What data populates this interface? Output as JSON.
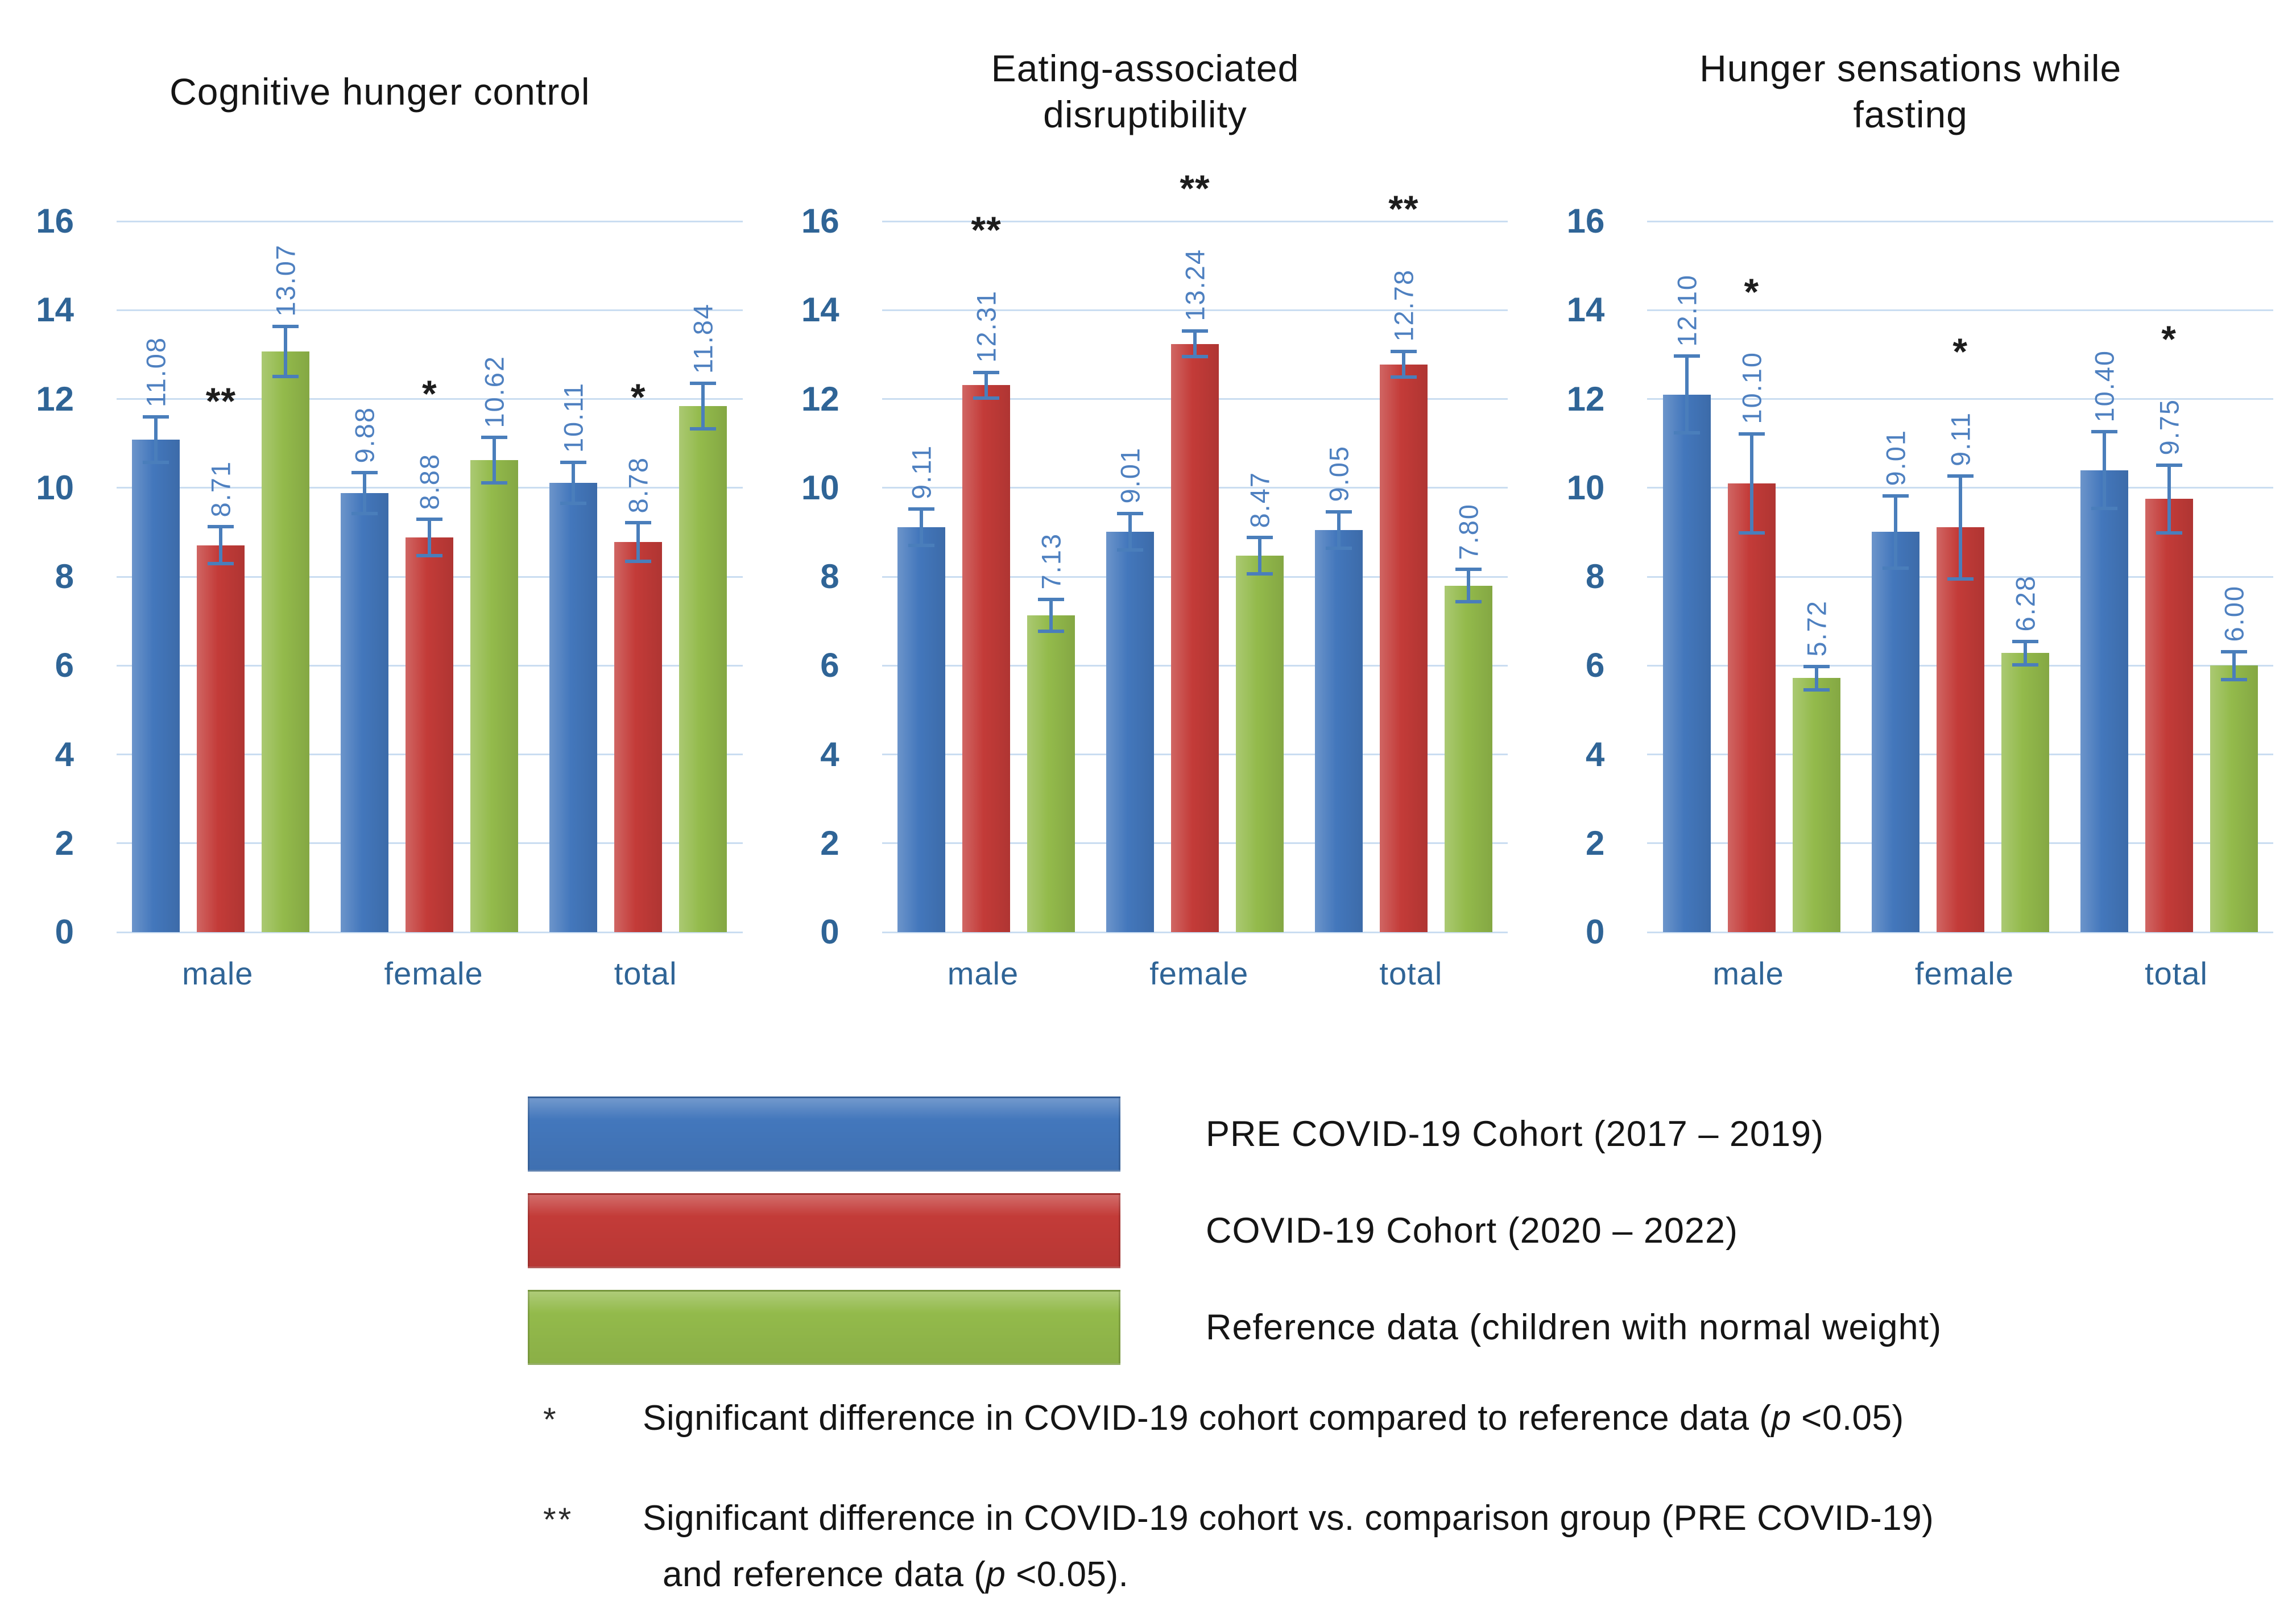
{
  "y_axis": {
    "min": 0,
    "max": 16,
    "step": 2
  },
  "colors": {
    "bar_blue": "#4377BC",
    "bar_red": "#C33B38",
    "bar_green": "#93BA4B",
    "error_bar": "#4A7EBB",
    "gridline": "#CADDF1",
    "axis_text": "#2F6496",
    "value_label_text": "#4E80C0",
    "title_text": "#151515",
    "sig_text": "#1d1d1d"
  },
  "chart_data": [
    {
      "type": "bar",
      "title": "Cognitive hunger control",
      "title_lines": [
        "Cognitive hunger control"
      ],
      "categories": [
        "male",
        "female",
        "total"
      ],
      "ylim": [
        0,
        16
      ],
      "series": [
        {
          "key": "pre-covid",
          "name": "PRE COVID-19 Cohort (2017 – 2019)",
          "color": "#4377BC",
          "values": [
            11.08,
            9.88,
            10.11
          ],
          "errors": [
            0.55,
            0.5,
            0.5
          ]
        },
        {
          "key": "covid",
          "name": "COVID-19 Cohort (2020 – 2022)",
          "color": "#C33B38",
          "values": [
            8.71,
            8.88,
            8.78
          ],
          "errors": [
            0.45,
            0.45,
            0.47
          ],
          "sig": [
            "**",
            "*",
            "*"
          ]
        },
        {
          "key": "reference",
          "name": "Reference data (children with normal weight)",
          "color": "#93BA4B",
          "values": [
            13.07,
            10.62,
            11.84
          ],
          "errors": [
            0.6,
            0.55,
            0.55
          ]
        }
      ]
    },
    {
      "type": "bar",
      "title": "Eating-associated disruptibility",
      "title_lines": [
        "Eating-associated",
        "disruptibility"
      ],
      "categories": [
        "male",
        "female",
        "total"
      ],
      "ylim": [
        0,
        16
      ],
      "series": [
        {
          "key": "pre-covid",
          "name": "PRE COVID-19 Cohort (2017 – 2019)",
          "color": "#4377BC",
          "values": [
            9.11,
            9.01,
            9.05
          ],
          "errors": [
            0.45,
            0.45,
            0.45
          ]
        },
        {
          "key": "covid",
          "name": "COVID-19 Cohort (2020 – 2022)",
          "color": "#C33B38",
          "values": [
            12.31,
            13.24,
            12.78
          ],
          "errors": [
            0.33,
            0.33,
            0.33
          ],
          "sig": [
            "**",
            "**",
            "**"
          ]
        },
        {
          "key": "reference",
          "name": "Reference data (children with normal weight)",
          "color": "#93BA4B",
          "values": [
            7.13,
            8.47,
            7.8
          ],
          "errors": [
            0.4,
            0.45,
            0.4
          ]
        }
      ]
    },
    {
      "type": "bar",
      "title": "Hunger sensations while fasting",
      "title_lines": [
        "Hunger sensations while",
        "fasting"
      ],
      "categories": [
        "male",
        "female",
        "total"
      ],
      "ylim": [
        0,
        16
      ],
      "series": [
        {
          "key": "pre-covid",
          "name": "PRE COVID-19 Cohort (2017 – 2019)",
          "color": "#4377BC",
          "values": [
            12.1,
            9.01,
            10.4
          ],
          "errors": [
            0.9,
            0.85,
            0.9
          ]
        },
        {
          "key": "covid",
          "name": "COVID-19 Cohort (2020 – 2022)",
          "color": "#C33B38",
          "values": [
            10.1,
            9.11,
            9.75
          ],
          "errors": [
            1.15,
            1.2,
            0.8
          ],
          "sig": [
            "*",
            "*",
            "*"
          ]
        },
        {
          "key": "reference",
          "name": "Reference data (children with normal weight)",
          "color": "#93BA4B",
          "values": [
            5.72,
            6.28,
            6.0
          ],
          "errors": [
            0.3,
            0.3,
            0.35
          ]
        }
      ]
    }
  ],
  "legend": {
    "items": [
      {
        "label": "PRE COVID-19 Cohort (2017 – 2019)",
        "color": "#4377BC"
      },
      {
        "label": "COVID-19 Cohort (2020 – 2022)",
        "color": "#C33B38"
      },
      {
        "label": "Reference data (children with normal weight)",
        "color": "#93BA4B"
      }
    ]
  },
  "footnotes": [
    {
      "symbol": "*",
      "before": "Significant difference in COVID-19 cohort compared to reference data (",
      "p": "p",
      "after": " <0.05)"
    },
    {
      "symbol": "**",
      "before": "Significant difference in COVID-19 cohort vs. comparison group (PRE COVID-19)",
      "p": "",
      "after": ""
    },
    {
      "symbol": "",
      "before": "and reference data (",
      "p": "p",
      "after": " <0.05)."
    }
  ]
}
